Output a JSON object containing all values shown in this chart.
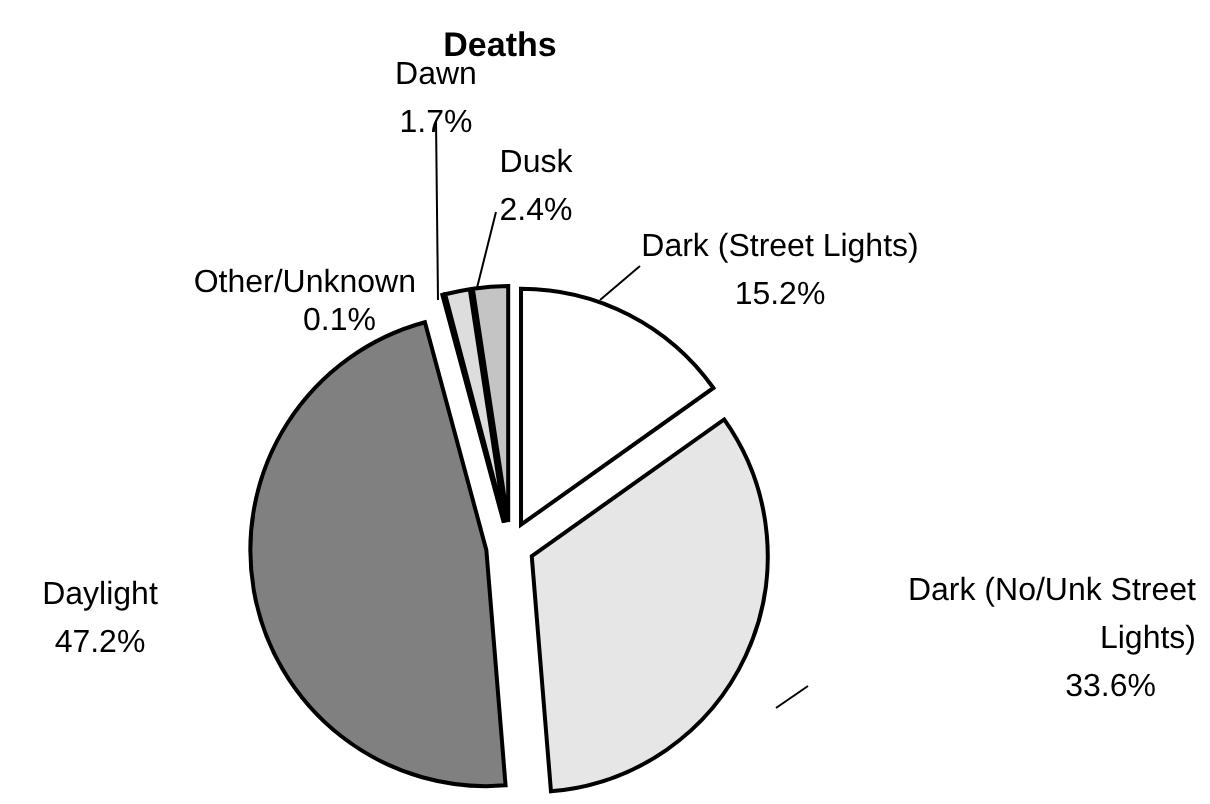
{
  "chart_data": {
    "type": "pie",
    "title": "Deaths",
    "categories": [
      "Dark (Street Lights)",
      "Dark (No/Unk Street Lights)",
      "Daylight",
      "Other/Unknown",
      "Dawn",
      "Dusk"
    ],
    "values": [
      15.2,
      33.6,
      47.2,
      0.1,
      1.7,
      2.4
    ],
    "value_labels": [
      "15.2%",
      "33.6%",
      "47.2%",
      "0.1%",
      "1.7%",
      "2.4%"
    ],
    "colors": [
      "#ffffff",
      "#e6e6e6",
      "#808080",
      "#ffffff",
      "#dddddd",
      "#c4c4c4"
    ],
    "legend": false
  }
}
